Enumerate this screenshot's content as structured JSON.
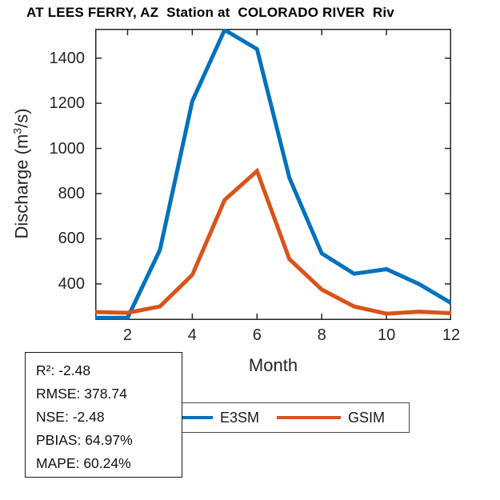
{
  "title": "AT LEES FERRY, AZ  Station at  COLORADO RIVER  Riv",
  "axes": {
    "xlabel": "Month",
    "ylabel_prefix": "Discharge (m",
    "ylabel_sup": "3",
    "ylabel_suffix": "/s)",
    "xticks": [
      2,
      4,
      6,
      8,
      10,
      12
    ],
    "yticks": [
      400,
      600,
      800,
      1000,
      1200,
      1400
    ],
    "xlim": [
      1,
      12
    ],
    "ylim": [
      240,
      1530
    ],
    "axis_color": "#262626"
  },
  "legend": {
    "items": [
      {
        "label": "E3SM",
        "color": "#0072BD"
      },
      {
        "label": "GSIM",
        "color": "#D95319"
      }
    ]
  },
  "stats": {
    "lines": [
      "R²: -2.48",
      "RMSE: 378.74",
      "NSE: -2.48",
      "PBIAS: 64.97%",
      "MAPE: 60.24%"
    ]
  },
  "chart_data": {
    "type": "line",
    "title": "AT LEES FERRY, AZ  Station at  COLORADO RIVER  Riv",
    "xlabel": "Month",
    "ylabel": "Discharge (m3/s)",
    "x": [
      1,
      2,
      3,
      4,
      5,
      6,
      7,
      8,
      9,
      10,
      11,
      12
    ],
    "series": [
      {
        "name": "E3SM",
        "color": "#0072BD",
        "values": [
          250,
          250,
          550,
          1210,
          1525,
          1440,
          870,
          535,
          445,
          465,
          400,
          315
        ]
      },
      {
        "name": "GSIM",
        "color": "#D95319",
        "values": [
          275,
          272,
          300,
          440,
          772,
          900,
          510,
          375,
          300,
          268,
          277,
          270
        ]
      }
    ],
    "xlim": [
      1,
      12
    ],
    "ylim": [
      240,
      1530
    ],
    "grid": false,
    "legend_position": "below-axis-horizontal"
  }
}
